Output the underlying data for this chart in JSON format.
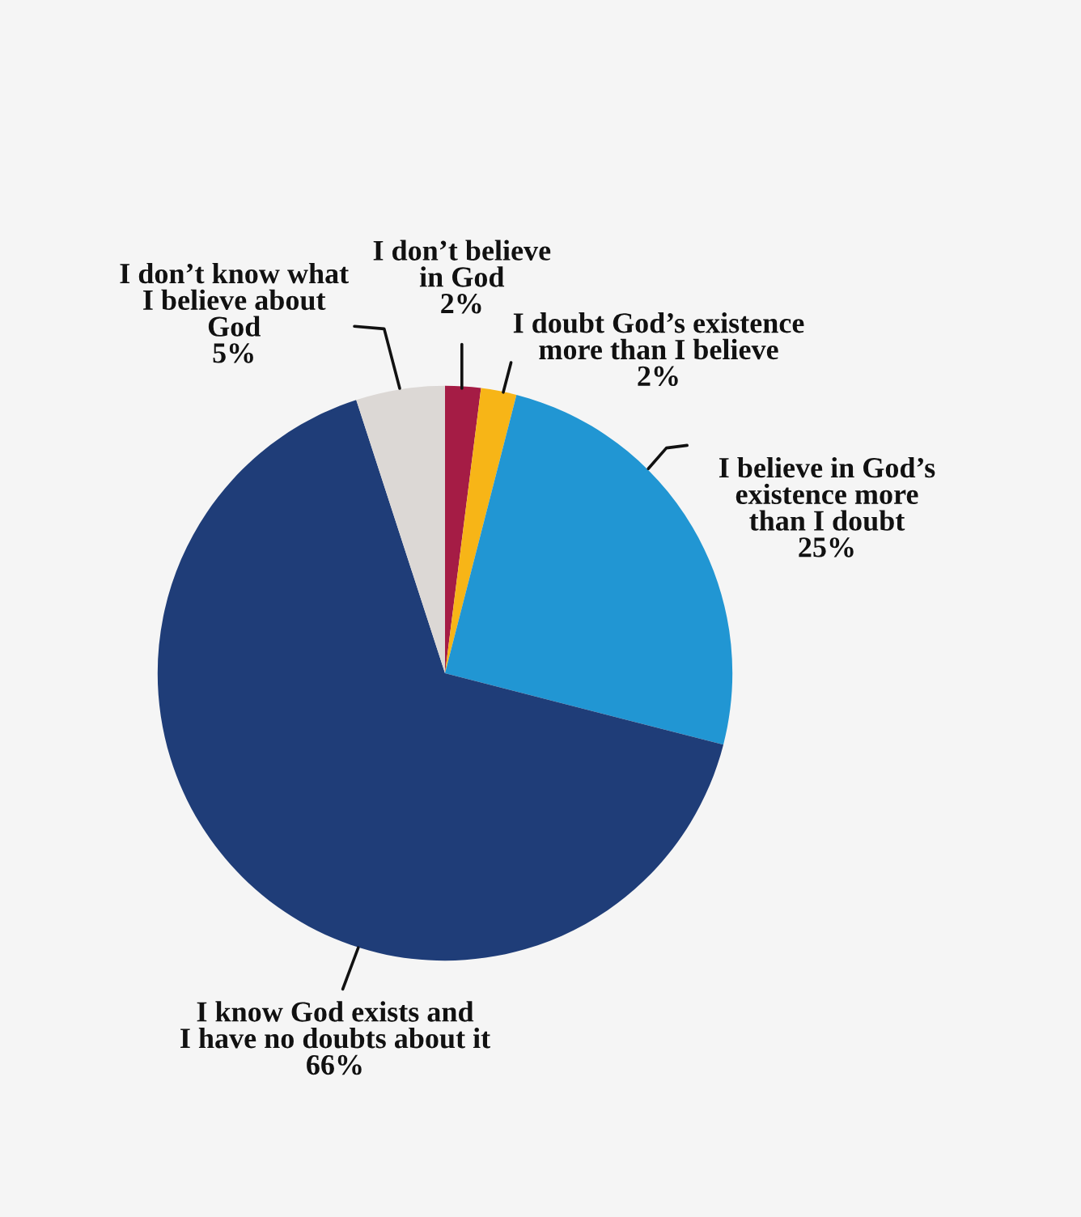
{
  "chart_data": {
    "type": "pie",
    "categories": [
      "I don’t believe\nin God",
      "I doubt God’s existence\nmore than I believe",
      "I believe in God’s\nexistence more\nthan I doubt",
      "I know God exists and\nI have no doubts about it",
      "I don’t know what\nI believe about\nGod"
    ],
    "values": [
      2,
      2,
      25,
      66,
      5
    ],
    "value_labels": [
      "2%",
      "2%",
      "25%",
      "66%",
      "5%"
    ],
    "colors": [
      "#a51c45",
      "#f7b517",
      "#2196d3",
      "#1f3d78",
      "#dcd8d5"
    ]
  }
}
